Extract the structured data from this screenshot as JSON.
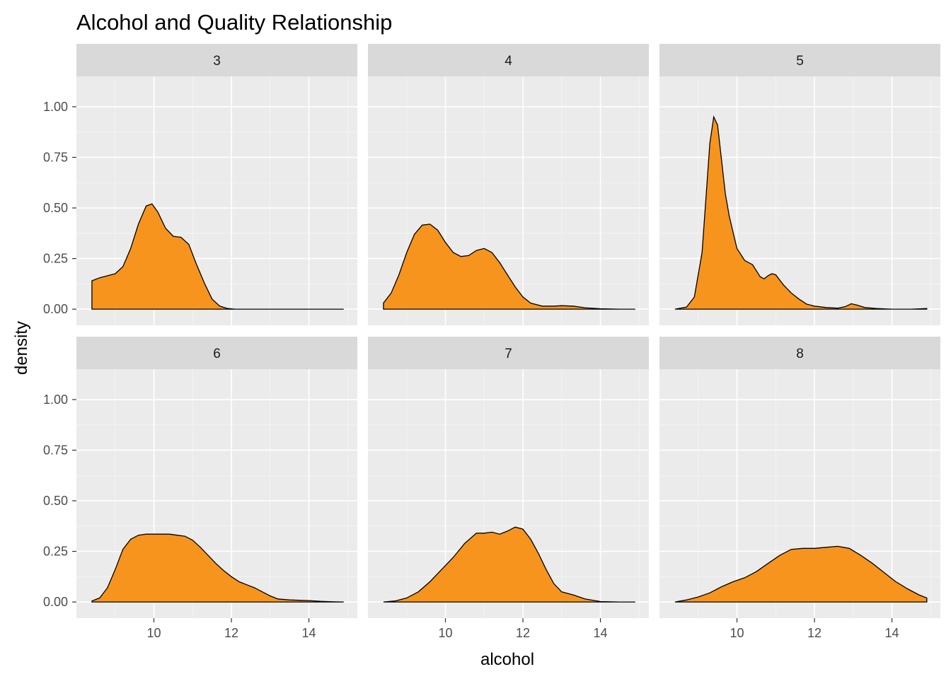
{
  "chart_data": {
    "type": "area",
    "title": "Alcohol and  Quality Relationship",
    "xlabel": "alcohol",
    "ylabel": "density",
    "xlim": [
      8.0,
      15.25
    ],
    "ylim": [
      -0.08,
      1.15
    ],
    "x_ticks": [
      10,
      12,
      14
    ],
    "y_ticks": [
      0.0,
      0.25,
      0.5,
      0.75,
      1.0
    ],
    "y_tick_labels": [
      "0.00",
      "0.25",
      "0.50",
      "0.75",
      "1.00"
    ],
    "grid": true,
    "legend": "none",
    "fill_color": "#f7941e",
    "facet_by": "quality",
    "facets": [
      {
        "label": "3",
        "x": [
          8.4,
          8.6,
          8.8,
          9.0,
          9.2,
          9.4,
          9.6,
          9.8,
          9.95,
          10.1,
          10.3,
          10.5,
          10.7,
          10.9,
          11.1,
          11.3,
          11.5,
          11.7,
          11.9,
          12.1,
          12.5,
          13.0,
          13.5,
          14.0,
          14.5,
          14.9
        ],
        "y": [
          0.14,
          0.155,
          0.165,
          0.175,
          0.21,
          0.3,
          0.42,
          0.51,
          0.52,
          0.48,
          0.4,
          0.36,
          0.355,
          0.32,
          0.22,
          0.13,
          0.05,
          0.015,
          0.003,
          0.0,
          0.0,
          0.0,
          0.0,
          0.0,
          0.0,
          0.0
        ]
      },
      {
        "label": "4",
        "x": [
          8.4,
          8.6,
          8.8,
          9.0,
          9.2,
          9.4,
          9.6,
          9.8,
          10.0,
          10.2,
          10.4,
          10.6,
          10.8,
          11.0,
          11.2,
          11.4,
          11.6,
          11.8,
          12.0,
          12.2,
          12.5,
          12.8,
          13.0,
          13.3,
          13.6,
          14.0,
          14.5,
          14.9
        ],
        "y": [
          0.03,
          0.08,
          0.17,
          0.28,
          0.37,
          0.415,
          0.42,
          0.39,
          0.33,
          0.28,
          0.26,
          0.265,
          0.29,
          0.3,
          0.28,
          0.23,
          0.17,
          0.11,
          0.06,
          0.03,
          0.015,
          0.015,
          0.017,
          0.015,
          0.007,
          0.002,
          0.0,
          0.0
        ]
      },
      {
        "label": "5",
        "x": [
          8.4,
          8.7,
          8.9,
          9.1,
          9.2,
          9.3,
          9.4,
          9.5,
          9.6,
          9.7,
          9.8,
          9.9,
          10.0,
          10.2,
          10.4,
          10.6,
          10.7,
          10.8,
          10.9,
          11.0,
          11.2,
          11.4,
          11.6,
          11.8,
          12.0,
          12.3,
          12.6,
          12.8,
          12.95,
          13.1,
          13.3,
          13.6,
          14.0,
          14.5,
          14.9
        ],
        "y": [
          0.0,
          0.01,
          0.06,
          0.28,
          0.55,
          0.82,
          0.95,
          0.91,
          0.74,
          0.57,
          0.46,
          0.38,
          0.3,
          0.24,
          0.22,
          0.16,
          0.15,
          0.165,
          0.175,
          0.17,
          0.12,
          0.08,
          0.05,
          0.025,
          0.015,
          0.008,
          0.005,
          0.013,
          0.027,
          0.02,
          0.008,
          0.003,
          0.0,
          0.0,
          0.003
        ]
      },
      {
        "label": "6",
        "x": [
          8.4,
          8.6,
          8.8,
          9.0,
          9.2,
          9.4,
          9.6,
          9.8,
          10.0,
          10.2,
          10.4,
          10.6,
          10.8,
          11.0,
          11.2,
          11.4,
          11.6,
          11.8,
          12.0,
          12.2,
          12.4,
          12.6,
          12.8,
          13.0,
          13.2,
          13.5,
          13.8,
          14.0,
          14.3,
          14.6,
          14.9
        ],
        "y": [
          0.005,
          0.02,
          0.07,
          0.16,
          0.26,
          0.31,
          0.33,
          0.335,
          0.335,
          0.335,
          0.335,
          0.33,
          0.325,
          0.305,
          0.27,
          0.23,
          0.19,
          0.155,
          0.125,
          0.1,
          0.085,
          0.07,
          0.05,
          0.03,
          0.015,
          0.01,
          0.008,
          0.007,
          0.003,
          0.001,
          0.0
        ]
      },
      {
        "label": "7",
        "x": [
          8.4,
          8.7,
          9.0,
          9.3,
          9.6,
          9.9,
          10.2,
          10.5,
          10.8,
          11.0,
          11.2,
          11.4,
          11.6,
          11.8,
          12.0,
          12.2,
          12.4,
          12.6,
          12.8,
          13.0,
          13.3,
          13.6,
          14.0,
          14.5,
          14.9
        ],
        "y": [
          0.0,
          0.005,
          0.02,
          0.05,
          0.1,
          0.16,
          0.22,
          0.29,
          0.34,
          0.34,
          0.345,
          0.335,
          0.35,
          0.37,
          0.36,
          0.31,
          0.24,
          0.16,
          0.09,
          0.05,
          0.035,
          0.015,
          0.002,
          0.0,
          0.0
        ]
      },
      {
        "label": "8",
        "x": [
          8.4,
          8.7,
          9.0,
          9.3,
          9.6,
          9.9,
          10.2,
          10.5,
          10.8,
          11.1,
          11.4,
          11.7,
          12.0,
          12.3,
          12.6,
          12.9,
          13.2,
          13.5,
          13.8,
          14.1,
          14.4,
          14.7,
          14.9
        ],
        "y": [
          0.0,
          0.01,
          0.025,
          0.045,
          0.075,
          0.1,
          0.12,
          0.15,
          0.19,
          0.23,
          0.26,
          0.265,
          0.265,
          0.27,
          0.275,
          0.265,
          0.23,
          0.19,
          0.145,
          0.1,
          0.065,
          0.035,
          0.02
        ]
      }
    ]
  }
}
